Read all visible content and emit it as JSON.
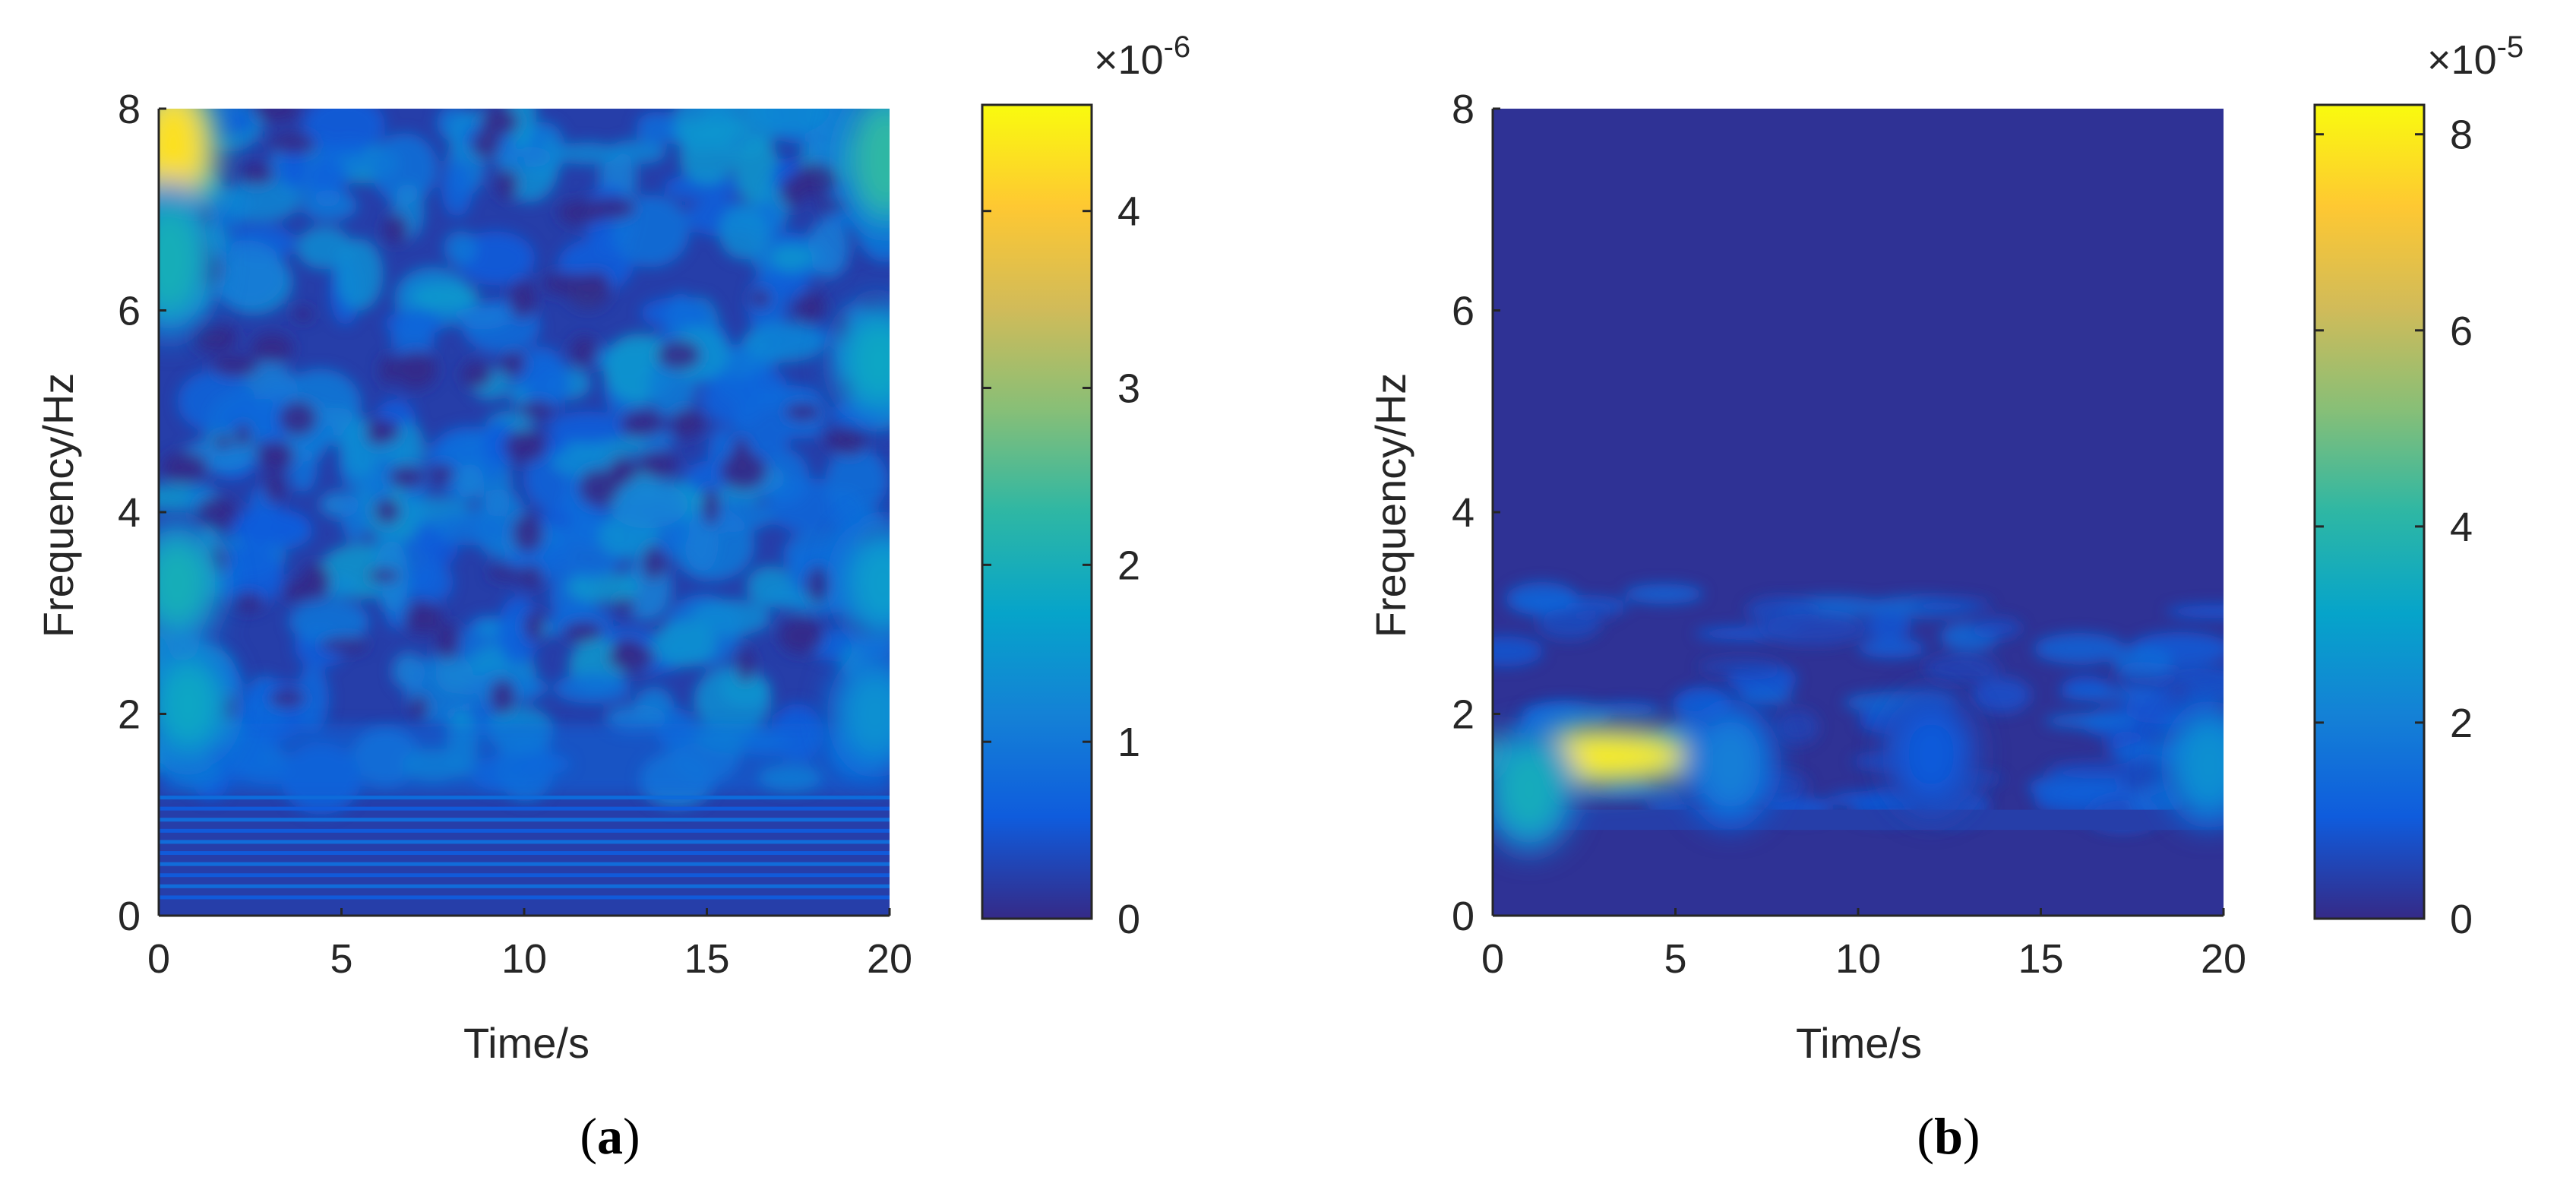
{
  "chart_data": [
    {
      "type": "heatmap",
      "panel_label": "a",
      "xlabel": "Time/s",
      "ylabel": "Frequency/Hz",
      "xlim": [
        0,
        20
      ],
      "ylim": [
        0,
        8
      ],
      "x_ticks": [
        0,
        5,
        10,
        15,
        20
      ],
      "y_ticks": [
        0,
        2,
        4,
        6,
        8
      ],
      "colorbar": {
        "range": [
          0,
          4.6
        ],
        "ticks": [
          0,
          1,
          2,
          3,
          4
        ],
        "exponent_base": "×10",
        "exponent_power": "-6",
        "colormap": "parula"
      },
      "features": [
        {
          "t": 0.4,
          "f": 7.6,
          "value": 4.3
        },
        {
          "t": 0.3,
          "f": 6.5,
          "value": 2.0
        },
        {
          "t": 0.5,
          "f": 3.3,
          "value": 2.0
        },
        {
          "t": 0.8,
          "f": 2.1,
          "value": 1.8
        },
        {
          "t": 19.9,
          "f": 7.5,
          "value": 2.3
        },
        {
          "t": 19.7,
          "f": 5.5,
          "value": 1.8
        },
        {
          "t": 19.8,
          "f": 3.3,
          "value": 1.6
        },
        {
          "t": 19.6,
          "f": 2.0,
          "value": 1.4
        }
      ]
    },
    {
      "type": "heatmap",
      "panel_label": "b",
      "xlabel": "Time/s",
      "ylabel": "Frequency/Hz",
      "xlim": [
        0,
        20
      ],
      "ylim": [
        0,
        8
      ],
      "x_ticks": [
        0,
        5,
        10,
        15,
        20
      ],
      "y_ticks": [
        0,
        2,
        4,
        6,
        8
      ],
      "colorbar": {
        "range": [
          0,
          8.3
        ],
        "ticks": [
          0,
          2,
          4,
          6,
          8
        ],
        "exponent_base": "×10",
        "exponent_power": "-5",
        "colormap": "parula"
      },
      "features": [
        {
          "t": 2.8,
          "f": 1.58,
          "value": 8.0
        },
        {
          "t": 1.0,
          "f": 1.25,
          "value": 3.5
        },
        {
          "t": 6.5,
          "f": 1.5,
          "value": 2.0
        },
        {
          "t": 19.6,
          "f": 1.5,
          "value": 2.5
        },
        {
          "t": 12.0,
          "f": 1.6,
          "value": 1.0
        }
      ]
    }
  ]
}
